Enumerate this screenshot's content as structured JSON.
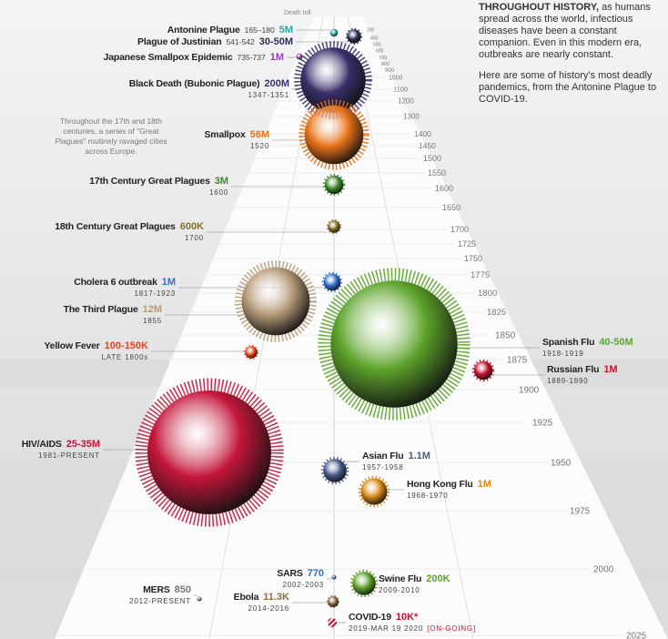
{
  "header": {
    "lead": "THROUGHOUT HISTORY,",
    "text": "as humans spread across the world, infectious diseases have been a constant companion. Even in this modern era, outbreaks are nearly constant.",
    "paragraph": "Here are some of history's most deadly pandemics, from the Antonine Plague to COVID-19."
  },
  "toll_heading": "Death toll",
  "annotation": "Throughout the 17th and 18th centuries, a series of \"Great Plagues\" routinely ravaged cities across Europe.",
  "timeline": {
    "years": [
      "200",
      "400",
      "500",
      "600",
      "700",
      "800",
      "900",
      "1000",
      "1100",
      "1200",
      "1300",
      "1400",
      "1450",
      "1500",
      "1550",
      "1600",
      "1650",
      "1700",
      "1725",
      "1750",
      "1775",
      "1800",
      "1825",
      "1850",
      "1875",
      "1900",
      "1925",
      "1950",
      "1975",
      "2000",
      "2025"
    ]
  },
  "pandemics": [
    {
      "name": "Antonine Plague",
      "dates": "165–180",
      "toll": "5M",
      "color": "#2aa79b"
    },
    {
      "name": "Plague of Justinian",
      "dates": "541-542",
      "toll": "30-50M",
      "color": "#2b2f52"
    },
    {
      "name": "Japanese Smallpox Epidemic",
      "dates": "735-737",
      "toll": "1M",
      "color": "#8e44ad"
    },
    {
      "name": "Black Death (Bubonic Plague)",
      "dates": "1347-1351",
      "toll": "200M",
      "color": "#3b2f6b"
    },
    {
      "name": "Smallpox",
      "dates": "1520",
      "toll": "56M",
      "color": "#e8731a"
    },
    {
      "name": "17th Century Great Plagues",
      "dates": "1600",
      "toll": "3M",
      "color": "#3f8a2a"
    },
    {
      "name": "18th Century Great Plagues",
      "dates": "1700",
      "toll": "600K",
      "color": "#8a6d1f"
    },
    {
      "name": "Cholera 6 outbreak",
      "dates": "1817-1923",
      "toll": "1M",
      "color": "#2f6fd0"
    },
    {
      "name": "The Third Plague",
      "dates": "1855",
      "toll": "12M",
      "color": "#b59a78"
    },
    {
      "name": "Yellow Fever",
      "dates": "LATE 1800s",
      "toll": "100-150K",
      "color": "#e8451f"
    },
    {
      "name": "Spanish Flu",
      "dates": "1918-1919",
      "toll": "40-50M",
      "color": "#5da42b"
    },
    {
      "name": "Russian Flu",
      "dates": "1889-1890",
      "toll": "1M",
      "color": "#c8102e"
    },
    {
      "name": "HIV/AIDS",
      "dates": "1981-PRESENT",
      "toll": "25-35M",
      "color": "#c4163a"
    },
    {
      "name": "Asian Flu",
      "dates": "1957-1958",
      "toll": "1.1M",
      "color": "#4a5a8a"
    },
    {
      "name": "Hong Kong Flu",
      "dates": "1968-1970",
      "toll": "1M",
      "color": "#d98a1a"
    },
    {
      "name": "SARS",
      "dates": "2002-2003",
      "toll": "770",
      "color": "#3a6fb0"
    },
    {
      "name": "Swine Flu",
      "dates": "2009-2010",
      "toll": "200K",
      "color": "#5da42b"
    },
    {
      "name": "MERS",
      "dates": "2012-PRESENT",
      "toll": "850",
      "color": "#777777"
    },
    {
      "name": "Ebola",
      "dates": "2014-2016",
      "toll": "11.3K",
      "color": "#8a6d4a"
    },
    {
      "name": "COVID-19",
      "dates": "2019-MAR 19 2020",
      "toll": "10K*",
      "color": "#c8102e",
      "status": "[ON-GOING]"
    }
  ]
}
